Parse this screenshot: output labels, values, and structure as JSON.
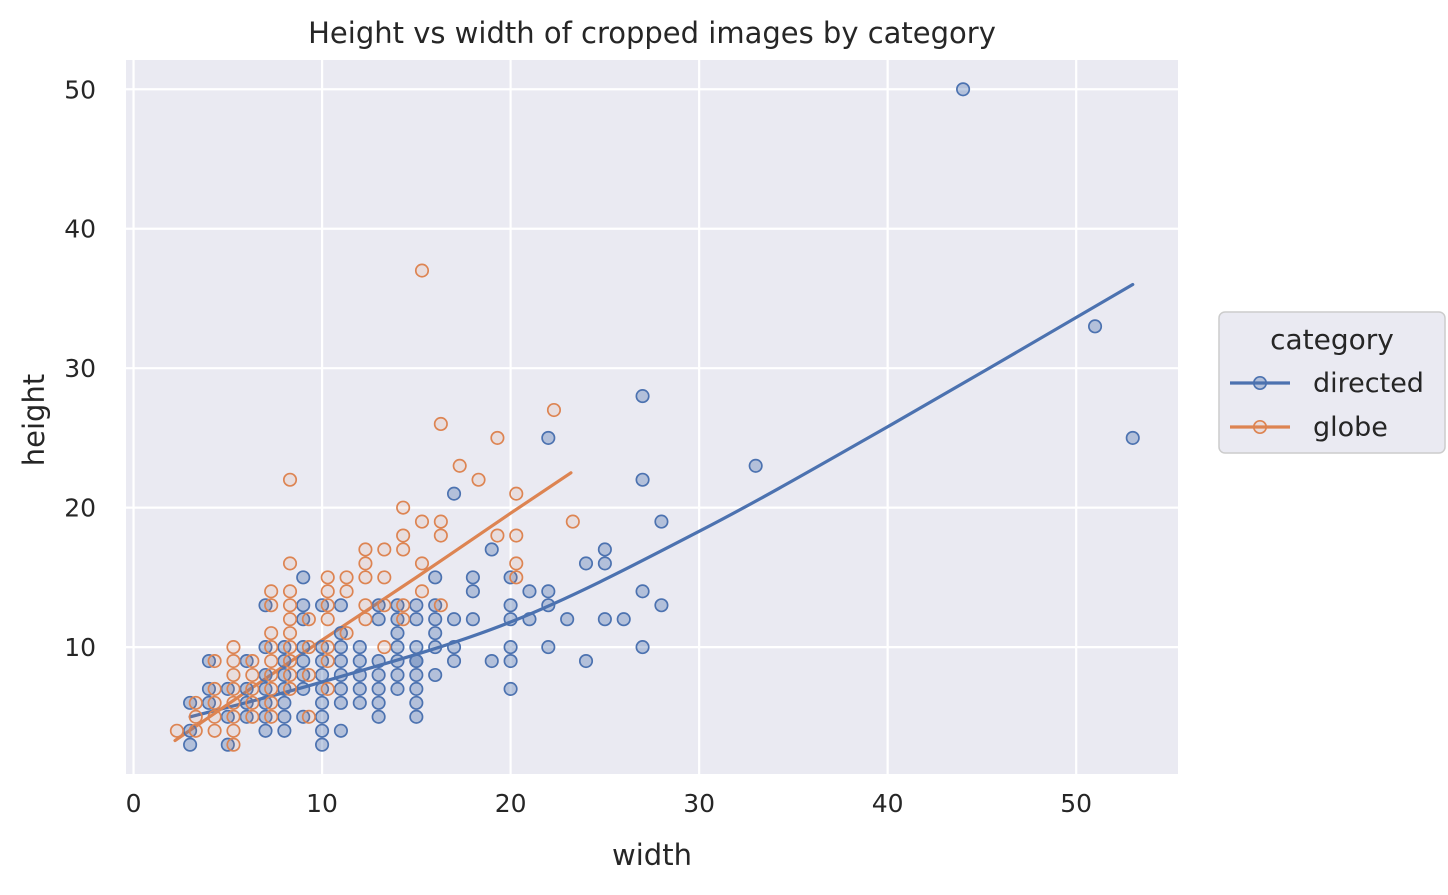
{
  "chart_data": {
    "type": "scatter",
    "title": "Height vs width of cropped images by category",
    "xlabel": "width",
    "ylabel": "height",
    "xlim": [
      -0.4,
      55.4
    ],
    "ylim": [
      0.9,
      52.1
    ],
    "xticks": [
      0,
      10,
      20,
      30,
      40,
      50
    ],
    "yticks": [
      10,
      20,
      30,
      40,
      50
    ],
    "grid": true,
    "legend": {
      "title": "category",
      "placement": "right"
    },
    "series": [
      {
        "name": "directed",
        "color": "#4c72b0",
        "points": [
          [
            44,
            50
          ],
          [
            51,
            33
          ],
          [
            53,
            25
          ],
          [
            27,
            28
          ],
          [
            33,
            23
          ],
          [
            27,
            22
          ],
          [
            22,
            25
          ],
          [
            28,
            19
          ],
          [
            25,
            17
          ],
          [
            19,
            17
          ],
          [
            24,
            16
          ],
          [
            25,
            16
          ],
          [
            17,
            21
          ],
          [
            20,
            15
          ],
          [
            18,
            15
          ],
          [
            16,
            15
          ],
          [
            27,
            14
          ],
          [
            21,
            14
          ],
          [
            22,
            14
          ],
          [
            18,
            14
          ],
          [
            28,
            13
          ],
          [
            22,
            13
          ],
          [
            20,
            13
          ],
          [
            16,
            13
          ],
          [
            15,
            13
          ],
          [
            14,
            13
          ],
          [
            13,
            13
          ],
          [
            11,
            13
          ],
          [
            10,
            13
          ],
          [
            9,
            13
          ],
          [
            7,
            13
          ],
          [
            25,
            12
          ],
          [
            26,
            12
          ],
          [
            23,
            12
          ],
          [
            21,
            12
          ],
          [
            20,
            12
          ],
          [
            18,
            12
          ],
          [
            17,
            12
          ],
          [
            16,
            12
          ],
          [
            15,
            12
          ],
          [
            14,
            12
          ],
          [
            13,
            12
          ],
          [
            9,
            12
          ],
          [
            16,
            11
          ],
          [
            14,
            11
          ],
          [
            11,
            11
          ],
          [
            27,
            10
          ],
          [
            22,
            10
          ],
          [
            20,
            10
          ],
          [
            17,
            10
          ],
          [
            16,
            10
          ],
          [
            15,
            10
          ],
          [
            14,
            10
          ],
          [
            12,
            10
          ],
          [
            11,
            10
          ],
          [
            10,
            10
          ],
          [
            9,
            10
          ],
          [
            8,
            10
          ],
          [
            7,
            10
          ],
          [
            24,
            9
          ],
          [
            20,
            9
          ],
          [
            19,
            9
          ],
          [
            17,
            9
          ],
          [
            15,
            9
          ],
          [
            14,
            9
          ],
          [
            13,
            9
          ],
          [
            12,
            9
          ],
          [
            11,
            9
          ],
          [
            10,
            9
          ],
          [
            9,
            9
          ],
          [
            8,
            9
          ],
          [
            6,
            9
          ],
          [
            4,
            9
          ],
          [
            16,
            8
          ],
          [
            15,
            8
          ],
          [
            14,
            8
          ],
          [
            13,
            8
          ],
          [
            12,
            8
          ],
          [
            11,
            8
          ],
          [
            10,
            8
          ],
          [
            9,
            8
          ],
          [
            8,
            8
          ],
          [
            7,
            8
          ],
          [
            20,
            7
          ],
          [
            15,
            7
          ],
          [
            14,
            7
          ],
          [
            13,
            7
          ],
          [
            12,
            7
          ],
          [
            11,
            7
          ],
          [
            10,
            7
          ],
          [
            9,
            7
          ],
          [
            8,
            7
          ],
          [
            7,
            7
          ],
          [
            6,
            7
          ],
          [
            5,
            7
          ],
          [
            4,
            7
          ],
          [
            15,
            6
          ],
          [
            13,
            6
          ],
          [
            12,
            6
          ],
          [
            11,
            6
          ],
          [
            10,
            6
          ],
          [
            8,
            6
          ],
          [
            7,
            6
          ],
          [
            6,
            6
          ],
          [
            4,
            6
          ],
          [
            3,
            6
          ],
          [
            15,
            5
          ],
          [
            13,
            5
          ],
          [
            10,
            5
          ],
          [
            9,
            5
          ],
          [
            8,
            5
          ],
          [
            7,
            5
          ],
          [
            6,
            5
          ],
          [
            5,
            5
          ],
          [
            11,
            4
          ],
          [
            10,
            4
          ],
          [
            8,
            4
          ],
          [
            7,
            4
          ],
          [
            3,
            4
          ],
          [
            10,
            3
          ],
          [
            5,
            3
          ],
          [
            3,
            3
          ],
          [
            15,
            9
          ],
          [
            9,
            15
          ]
        ],
        "fit": [
          [
            3,
            5.0
          ],
          [
            10,
            7.5
          ],
          [
            20,
            11.8
          ],
          [
            30,
            18.3
          ],
          [
            40,
            25.8
          ],
          [
            53,
            36
          ]
        ]
      },
      {
        "name": "globe",
        "color": "#dd8452",
        "points": [
          [
            15.3,
            37
          ],
          [
            16.3,
            26
          ],
          [
            22.3,
            27
          ],
          [
            19.3,
            25
          ],
          [
            8.3,
            22
          ],
          [
            18.3,
            22
          ],
          [
            17.3,
            23
          ],
          [
            20.3,
            21
          ],
          [
            14.3,
            20
          ],
          [
            15.3,
            19
          ],
          [
            16.3,
            19
          ],
          [
            23.3,
            19
          ],
          [
            20.3,
            18
          ],
          [
            19.3,
            18
          ],
          [
            16.3,
            18
          ],
          [
            14.3,
            18
          ],
          [
            12.3,
            17
          ],
          [
            13.3,
            17
          ],
          [
            14.3,
            17
          ],
          [
            8.3,
            16
          ],
          [
            12.3,
            16
          ],
          [
            15.3,
            16
          ],
          [
            20.3,
            16
          ],
          [
            10.3,
            15
          ],
          [
            11.3,
            15
          ],
          [
            12.3,
            15
          ],
          [
            13.3,
            15
          ],
          [
            20.3,
            15
          ],
          [
            7.3,
            14
          ],
          [
            8.3,
            14
          ],
          [
            10.3,
            14
          ],
          [
            11.3,
            14
          ],
          [
            15.3,
            14
          ],
          [
            7.3,
            13
          ],
          [
            8.3,
            13
          ],
          [
            10.3,
            13
          ],
          [
            12.3,
            13
          ],
          [
            13.3,
            13
          ],
          [
            14.3,
            13
          ],
          [
            16.3,
            13
          ],
          [
            8.3,
            12
          ],
          [
            9.3,
            12
          ],
          [
            10.3,
            12
          ],
          [
            12.3,
            12
          ],
          [
            14.3,
            12
          ],
          [
            7.3,
            11
          ],
          [
            8.3,
            11
          ],
          [
            11.3,
            11
          ],
          [
            5.3,
            10
          ],
          [
            7.3,
            10
          ],
          [
            8.3,
            10
          ],
          [
            9.3,
            10
          ],
          [
            10.3,
            10
          ],
          [
            13.3,
            10
          ],
          [
            5.3,
            9
          ],
          [
            6.3,
            9
          ],
          [
            7.3,
            9
          ],
          [
            8.3,
            9
          ],
          [
            10.3,
            9
          ],
          [
            4.3,
            9
          ],
          [
            6.3,
            8
          ],
          [
            7.3,
            8
          ],
          [
            8.3,
            8
          ],
          [
            5.3,
            8
          ],
          [
            9.3,
            8
          ],
          [
            4.3,
            7
          ],
          [
            5.3,
            7
          ],
          [
            6.3,
            7
          ],
          [
            8.3,
            7
          ],
          [
            10.3,
            7
          ],
          [
            7.3,
            7
          ],
          [
            3.3,
            6
          ],
          [
            4.3,
            6
          ],
          [
            5.3,
            6
          ],
          [
            6.3,
            6
          ],
          [
            7.3,
            6
          ],
          [
            3.3,
            5
          ],
          [
            4.3,
            5
          ],
          [
            5.3,
            5
          ],
          [
            6.3,
            5
          ],
          [
            7.3,
            5
          ],
          [
            9.3,
            5
          ],
          [
            2.3,
            4
          ],
          [
            3.3,
            4
          ],
          [
            4.3,
            4
          ],
          [
            5.3,
            4
          ],
          [
            5.3,
            3
          ]
        ],
        "fit": [
          [
            2.2,
            3.3
          ],
          [
            5,
            5.9
          ],
          [
            10,
            10.5
          ],
          [
            15,
            15
          ],
          [
            20,
            19.6
          ],
          [
            23.2,
            22.5
          ]
        ]
      }
    ]
  }
}
